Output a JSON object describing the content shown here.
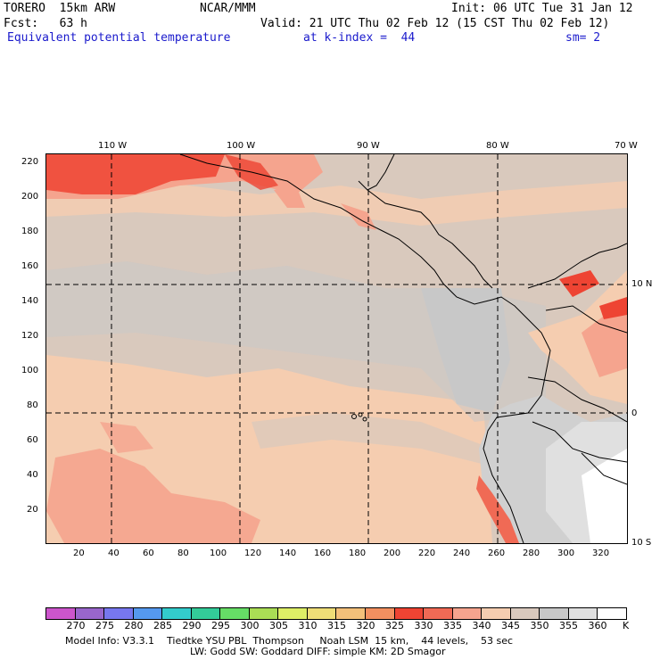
{
  "header": {
    "line1_left": "TORERO  15km ARW",
    "line1_center": "NCAR/MMM",
    "line1_right": "Init: 06 UTC Tue 31 Jan 12",
    "line2_left": "Fcst:   63 h",
    "line2_right": "Valid: 21 UTC Thu 02 Feb 12 (15 CST Thu 02 Feb 12)",
    "field_name": "Equivalent potential temperature",
    "level": "at k-index =  44",
    "smoothing": "sm= 2"
  },
  "map": {
    "top_lon_labels": [
      "110 W",
      "100 W",
      "90 W",
      "80 W",
      "70 W"
    ],
    "right_lat_labels": [
      "10 N",
      "0",
      "10 S"
    ],
    "left_y_ticks": [
      "220",
      "200",
      "180",
      "160",
      "140",
      "120",
      "100",
      "80",
      "60",
      "40",
      "20"
    ],
    "bottom_x_ticks": [
      "20",
      "40",
      "60",
      "80",
      "100",
      "120",
      "140",
      "160",
      "180",
      "200",
      "220",
      "240",
      "260",
      "280",
      "300",
      "320"
    ],
    "x_range": [
      0,
      332
    ],
    "y_range": [
      0,
      224
    ]
  },
  "colorbar": {
    "labels": [
      "270",
      "275",
      "280",
      "285",
      "290",
      "295",
      "300",
      "305",
      "310",
      "315",
      "320",
      "325",
      "330",
      "335",
      "340",
      "345",
      "350",
      "355",
      "360"
    ],
    "unit": "K",
    "colors": [
      "#cc55cc",
      "#9966cc",
      "#7777ee",
      "#5599ee",
      "#33cccc",
      "#33cc99",
      "#66dd66",
      "#aadd55",
      "#ddee66",
      "#eedd77",
      "#f3c07a",
      "#f29060",
      "#ee4433",
      "#f06a55",
      "#f5a48e",
      "#f5cdb0",
      "#d9c9bd",
      "#c8c8c8",
      "#e0e0e0",
      "#ffffff"
    ]
  },
  "footer": {
    "line1": "Model Info: V3.3.1    Tiedtke YSU PBL  Thompson     Noah LSM  15 km,    44 levels,    53 sec",
    "line2": "LW: Godd SW: Goddard DIFF: simple KM: 2D Smagor"
  }
}
